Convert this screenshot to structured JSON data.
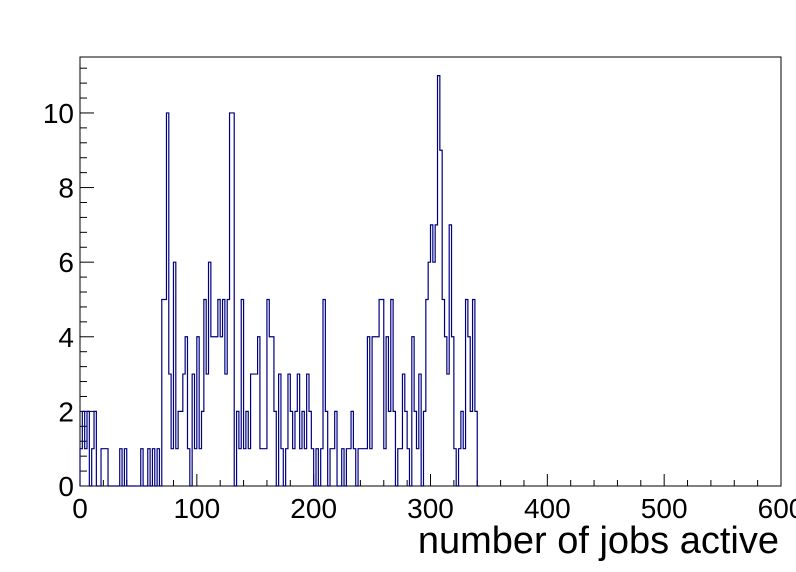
{
  "chart_data": {
    "type": "bar",
    "style": "step-histogram",
    "title": "",
    "xlabel": "number of jobs active",
    "ylabel": "",
    "xlim": [
      0,
      600
    ],
    "ylim": [
      0,
      11.5
    ],
    "bin_width": 2,
    "x_ticks": [
      0,
      100,
      200,
      300,
      400,
      500,
      600
    ],
    "x_tick_labels": [
      "0",
      "100",
      "200",
      "300",
      "400",
      "500",
      "600"
    ],
    "y_ticks": [
      0,
      2,
      4,
      6,
      8,
      10
    ],
    "y_tick_labels": [
      "0",
      "2",
      "4",
      "6",
      "8",
      "10"
    ],
    "grid": false,
    "legend": "none",
    "colors": {
      "line": "#00007f",
      "frame": "#000000",
      "background": "#ffffff"
    },
    "bins": [
      [
        0,
        1
      ],
      [
        2,
        2
      ],
      [
        4,
        1
      ],
      [
        6,
        2
      ],
      [
        8,
        0
      ],
      [
        10,
        1
      ],
      [
        12,
        2
      ],
      [
        14,
        0
      ],
      [
        18,
        1
      ],
      [
        20,
        1
      ],
      [
        22,
        1
      ],
      [
        24,
        0
      ],
      [
        34,
        1
      ],
      [
        36,
        0
      ],
      [
        38,
        1
      ],
      [
        40,
        0
      ],
      [
        52,
        1
      ],
      [
        54,
        0
      ],
      [
        58,
        1
      ],
      [
        60,
        0
      ],
      [
        62,
        1
      ],
      [
        64,
        0
      ],
      [
        66,
        1
      ],
      [
        68,
        0
      ],
      [
        70,
        1
      ],
      [
        72,
        0
      ],
      [
        70,
        5
      ],
      [
        72,
        5
      ],
      [
        74,
        10
      ],
      [
        76,
        3
      ],
      [
        78,
        1
      ],
      [
        80,
        6
      ],
      [
        82,
        1
      ],
      [
        84,
        2
      ],
      [
        86,
        2
      ],
      [
        88,
        3
      ],
      [
        90,
        4
      ],
      [
        92,
        1
      ],
      [
        94,
        0
      ],
      [
        96,
        3
      ],
      [
        98,
        1
      ],
      [
        100,
        4
      ],
      [
        102,
        1
      ],
      [
        104,
        2
      ],
      [
        106,
        5
      ],
      [
        108,
        3
      ],
      [
        110,
        6
      ],
      [
        112,
        4
      ],
      [
        114,
        4
      ],
      [
        116,
        4
      ],
      [
        118,
        5
      ],
      [
        120,
        4
      ],
      [
        122,
        5
      ],
      [
        124,
        3
      ],
      [
        126,
        5
      ],
      [
        128,
        10
      ],
      [
        130,
        10
      ],
      [
        132,
        0
      ],
      [
        134,
        2
      ],
      [
        136,
        1
      ],
      [
        138,
        5
      ],
      [
        140,
        1
      ],
      [
        142,
        2
      ],
      [
        144,
        1
      ],
      [
        146,
        3
      ],
      [
        148,
        3
      ],
      [
        150,
        3
      ],
      [
        152,
        4
      ],
      [
        154,
        1
      ],
      [
        156,
        1
      ],
      [
        158,
        1
      ],
      [
        160,
        5
      ],
      [
        162,
        4
      ],
      [
        164,
        4
      ],
      [
        166,
        2
      ],
      [
        168,
        0
      ],
      [
        170,
        3
      ],
      [
        172,
        1
      ],
      [
        174,
        0
      ],
      [
        176,
        1
      ],
      [
        178,
        3
      ],
      [
        180,
        2
      ],
      [
        182,
        1
      ],
      [
        184,
        2
      ],
      [
        186,
        3
      ],
      [
        188,
        1
      ],
      [
        190,
        2
      ],
      [
        192,
        1
      ],
      [
        194,
        3
      ],
      [
        196,
        2
      ],
      [
        198,
        1
      ],
      [
        200,
        0
      ],
      [
        202,
        1
      ],
      [
        204,
        0
      ],
      [
        206,
        1
      ],
      [
        208,
        5
      ],
      [
        210,
        2
      ],
      [
        212,
        0
      ],
      [
        214,
        1
      ],
      [
        216,
        1
      ],
      [
        218,
        2
      ],
      [
        220,
        0
      ],
      [
        222,
        0
      ],
      [
        224,
        1
      ],
      [
        226,
        0
      ],
      [
        228,
        1
      ],
      [
        230,
        1
      ],
      [
        232,
        2
      ],
      [
        234,
        1
      ],
      [
        236,
        0
      ],
      [
        238,
        1
      ],
      [
        240,
        1
      ],
      [
        242,
        1
      ],
      [
        244,
        1
      ],
      [
        246,
        4
      ],
      [
        248,
        1
      ],
      [
        250,
        4
      ],
      [
        252,
        4
      ],
      [
        254,
        4
      ],
      [
        256,
        5
      ],
      [
        258,
        5
      ],
      [
        260,
        1
      ],
      [
        262,
        4
      ],
      [
        264,
        2
      ],
      [
        266,
        5
      ],
      [
        268,
        2
      ],
      [
        270,
        0
      ],
      [
        272,
        1
      ],
      [
        274,
        1
      ],
      [
        276,
        3
      ],
      [
        278,
        2
      ],
      [
        280,
        1
      ],
      [
        282,
        0
      ],
      [
        284,
        4
      ],
      [
        286,
        2
      ],
      [
        288,
        1
      ],
      [
        290,
        3
      ],
      [
        292,
        0
      ],
      [
        294,
        2
      ],
      [
        296,
        5
      ],
      [
        298,
        6
      ],
      [
        300,
        7
      ],
      [
        302,
        6
      ],
      [
        304,
        7
      ],
      [
        306,
        11
      ],
      [
        308,
        9
      ],
      [
        310,
        5
      ],
      [
        312,
        4
      ],
      [
        314,
        3
      ],
      [
        316,
        7
      ],
      [
        318,
        4
      ],
      [
        320,
        1
      ],
      [
        322,
        0
      ],
      [
        324,
        1
      ],
      [
        326,
        2
      ],
      [
        328,
        1
      ],
      [
        330,
        5
      ],
      [
        332,
        4
      ],
      [
        334,
        2
      ],
      [
        336,
        5
      ],
      [
        338,
        2
      ],
      [
        340,
        0
      ]
    ]
  }
}
